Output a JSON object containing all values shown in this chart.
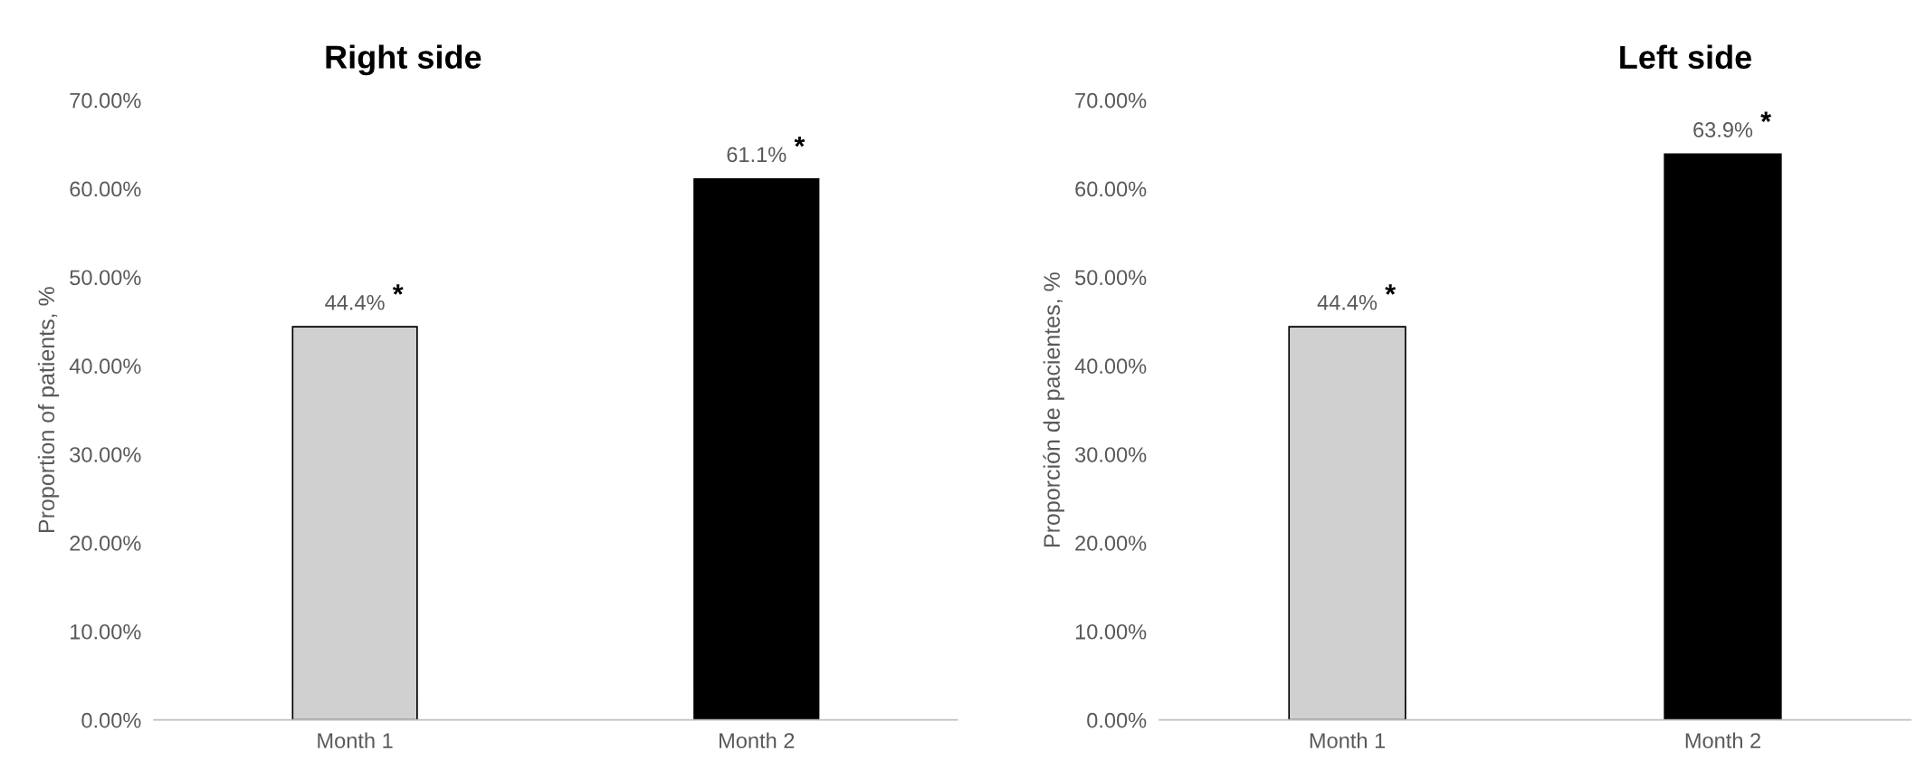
{
  "chart_data": [
    {
      "type": "bar",
      "title": "Right side",
      "ylabel": "Proportion of patients, %",
      "categories": [
        "Month 1",
        "Month 2"
      ],
      "values": [
        44.4,
        61.1
      ],
      "colors": [
        "#d0d0d0",
        "#000000"
      ],
      "value_labels": [
        "44.4%",
        "61.1%"
      ],
      "annotations": [
        {
          "text": "*",
          "x": "Month 1",
          "y": 44.4
        },
        {
          "text": "*",
          "x": "Month 2",
          "y": 61.1
        }
      ],
      "ylim": [
        0,
        70
      ],
      "yticks": [
        {
          "value": 0,
          "label": "0.00%"
        },
        {
          "value": 10,
          "label": "10.00%"
        },
        {
          "value": 20,
          "label": "20.00%"
        },
        {
          "value": 30,
          "label": "30.00%"
        },
        {
          "value": 40,
          "label": "40.00%"
        },
        {
          "value": 50,
          "label": "50.00%"
        },
        {
          "value": 60,
          "label": "60.00%"
        },
        {
          "value": 70,
          "label": "70.00%"
        }
      ],
      "grid": false,
      "legend": false
    },
    {
      "type": "bar",
      "title": "Left side",
      "ylabel": "Proporción de pacientes, %",
      "categories": [
        "Month 1",
        "Month 2"
      ],
      "values": [
        44.4,
        63.9
      ],
      "colors": [
        "#d0d0d0",
        "#000000"
      ],
      "value_labels": [
        "44.4%",
        "63.9%"
      ],
      "annotations": [
        {
          "text": "*",
          "x": "Month 1",
          "y": 44.4
        },
        {
          "text": "*",
          "x": "Month 2",
          "y": 63.9
        }
      ],
      "ylim": [
        0,
        70
      ],
      "yticks": [
        {
          "value": 0,
          "label": "0.00%"
        },
        {
          "value": 10,
          "label": "10.00%"
        },
        {
          "value": 20,
          "label": "20.00%"
        },
        {
          "value": 30,
          "label": "30.00%"
        },
        {
          "value": 40,
          "label": "40.00%"
        },
        {
          "value": 50,
          "label": "50.00%"
        },
        {
          "value": 60,
          "label": "60.00%"
        },
        {
          "value": 70,
          "label": "70.00%"
        }
      ],
      "grid": false,
      "legend": false
    }
  ]
}
